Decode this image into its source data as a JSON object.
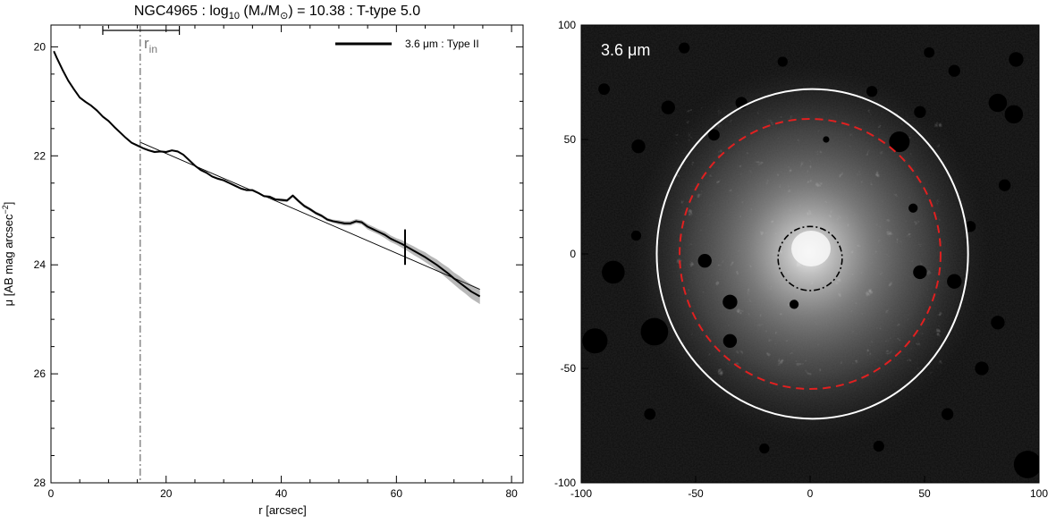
{
  "figure": {
    "title_prefix": "NGC4965 : log",
    "title_sub": "10",
    "title_mid": " (M",
    "title_star": "*",
    "title_slash": "/M",
    "title_sun": "⊙",
    "title_suffix": ") = 10.38 : T-type 5.0"
  },
  "chart_data": [
    {
      "type": "line",
      "xlabel": "r [arcsec]",
      "ylabel_prefix": "μ [AB mag arcsec",
      "ylabel_sup": "−2",
      "ylabel_suffix": "]",
      "xlim": [
        0,
        82
      ],
      "ylim": [
        28,
        19.6
      ],
      "y_inverted": true,
      "xticks": [
        0,
        20,
        40,
        60,
        80
      ],
      "yticks": [
        20,
        22,
        24,
        26,
        28
      ],
      "legend": {
        "label": "3.6 μm : Type II",
        "placement": "top-right"
      },
      "series": [
        {
          "name": "3.6 μm : Type II",
          "color": "#000000",
          "x": [
            0.5,
            1,
            2,
            3,
            4,
            5,
            6,
            7,
            8,
            9,
            10,
            11,
            12,
            13,
            14,
            15,
            16,
            17,
            18,
            19,
            20,
            21,
            22,
            23,
            24,
            25,
            26,
            27,
            28,
            29,
            30,
            31,
            32,
            33,
            34,
            35,
            36,
            37,
            38,
            39,
            40,
            41,
            42,
            43,
            44,
            45,
            46,
            47,
            48,
            49,
            50,
            51,
            52,
            53,
            54,
            55,
            56,
            57,
            58,
            59,
            60,
            61,
            62,
            63,
            64,
            65,
            66,
            67,
            68,
            69,
            70,
            71,
            72,
            73,
            74.5
          ],
          "y": [
            20.08,
            20.2,
            20.42,
            20.62,
            20.78,
            20.93,
            21.01,
            21.08,
            21.17,
            21.28,
            21.36,
            21.47,
            21.57,
            21.67,
            21.76,
            21.81,
            21.86,
            21.9,
            21.93,
            21.92,
            21.93,
            21.9,
            21.92,
            21.98,
            22.08,
            22.18,
            22.26,
            22.31,
            22.38,
            22.42,
            22.45,
            22.5,
            22.55,
            22.6,
            22.63,
            22.63,
            22.68,
            22.74,
            22.75,
            22.8,
            22.81,
            22.82,
            22.73,
            22.83,
            22.92,
            22.98,
            23.05,
            23.1,
            23.17,
            23.2,
            23.22,
            23.24,
            23.24,
            23.2,
            23.22,
            23.3,
            23.35,
            23.4,
            23.45,
            23.52,
            23.57,
            23.62,
            23.68,
            23.74,
            23.8,
            23.86,
            23.93,
            24.0,
            24.08,
            24.16,
            24.25,
            24.33,
            24.41,
            24.49,
            24.58
          ],
          "band_halfwidth": [
            0.02,
            0.02,
            0.02,
            0.02,
            0.02,
            0.02,
            0.02,
            0.02,
            0.02,
            0.02,
            0.02,
            0.02,
            0.02,
            0.02,
            0.02,
            0.02,
            0.02,
            0.02,
            0.02,
            0.02,
            0.02,
            0.02,
            0.02,
            0.02,
            0.02,
            0.02,
            0.02,
            0.02,
            0.02,
            0.02,
            0.02,
            0.02,
            0.02,
            0.02,
            0.02,
            0.02,
            0.02,
            0.02,
            0.02,
            0.02,
            0.03,
            0.03,
            0.03,
            0.03,
            0.03,
            0.03,
            0.03,
            0.03,
            0.03,
            0.03,
            0.04,
            0.04,
            0.04,
            0.04,
            0.04,
            0.05,
            0.05,
            0.05,
            0.06,
            0.06,
            0.06,
            0.07,
            0.07,
            0.08,
            0.08,
            0.09,
            0.09,
            0.1,
            0.1,
            0.11,
            0.11,
            0.12,
            0.12,
            0.13,
            0.14
          ]
        }
      ],
      "fit_line": {
        "x": [
          15.5,
          74.5
        ],
        "y": [
          21.75,
          24.45
        ]
      },
      "r_in": {
        "value": 15.5,
        "label_main": "r",
        "label_sub": "in",
        "err_range": [
          9,
          22.3
        ],
        "style": "dash-dot",
        "color": "#777777"
      },
      "break_marker": {
        "x": 61.5,
        "y_range": [
          23.35,
          24.0
        ]
      }
    },
    {
      "type": "image",
      "band_label": "3.6 μm",
      "xlim": [
        -100,
        100
      ],
      "ylim": [
        -100,
        100
      ],
      "xticks": [
        -100,
        -50,
        0,
        50,
        100
      ],
      "yticks": [
        -100,
        -50,
        0,
        50,
        100
      ],
      "inner_ellipse": {
        "cx": 0,
        "cy": -2,
        "rx": 14,
        "ry": 14,
        "color": "#000000",
        "style": "dash-dot"
      },
      "break_ellipse": {
        "cx": 0,
        "cy": 0,
        "rx": 57,
        "ry": 59,
        "color": "#e02020",
        "style": "dashed"
      },
      "outer_ellipse": {
        "cx": 1,
        "cy": 0,
        "rx": 68,
        "ry": 72,
        "color": "#ffffff",
        "style": "solid"
      },
      "masked_sources": [
        {
          "x": 39,
          "y": 49,
          "r": 4.5
        },
        {
          "x": -94,
          "y": -38,
          "r": 5.5
        },
        {
          "x": -68,
          "y": -34,
          "r": 6
        },
        {
          "x": -86,
          "y": -8,
          "r": 5
        },
        {
          "x": -46,
          "y": -3,
          "r": 3
        },
        {
          "x": -35,
          "y": -21,
          "r": 3.2
        },
        {
          "x": -35,
          "y": -38,
          "r": 3
        },
        {
          "x": -7,
          "y": -22,
          "r": 2
        },
        {
          "x": 48,
          "y": -8,
          "r": 3
        },
        {
          "x": 63,
          "y": -12,
          "r": 3.2
        },
        {
          "x": 82,
          "y": 66,
          "r": 4
        },
        {
          "x": 89,
          "y": 61,
          "r": 4
        },
        {
          "x": 63,
          "y": 80,
          "r": 2.6
        },
        {
          "x": 70,
          "y": 12,
          "r": 2.4
        },
        {
          "x": -30,
          "y": 66,
          "r": 2.6
        },
        {
          "x": 27,
          "y": 71,
          "r": 2.4
        },
        {
          "x": 48,
          "y": 62,
          "r": 2.6
        },
        {
          "x": 90,
          "y": 85,
          "r": 3.2
        },
        {
          "x": 95,
          "y": -92,
          "r": 6
        },
        {
          "x": -62,
          "y": 64,
          "r": 3
        },
        {
          "x": -75,
          "y": 47,
          "r": 3
        },
        {
          "x": -42,
          "y": 52,
          "r": 2.5
        },
        {
          "x": -12,
          "y": 84,
          "r": 2.2
        },
        {
          "x": 45,
          "y": 20,
          "r": 2
        },
        {
          "x": 75,
          "y": -50,
          "r": 3
        },
        {
          "x": 60,
          "y": -70,
          "r": 2.6
        },
        {
          "x": 82,
          "y": -30,
          "r": 3
        },
        {
          "x": -90,
          "y": 72,
          "r": 2.5
        },
        {
          "x": -70,
          "y": -70,
          "r": 2.5
        },
        {
          "x": -20,
          "y": -85,
          "r": 2.2
        },
        {
          "x": 30,
          "y": -84,
          "r": 2.4
        },
        {
          "x": 85,
          "y": 30,
          "r": 2.6
        },
        {
          "x": -76,
          "y": 8,
          "r": 2.2
        },
        {
          "x": 52,
          "y": 88,
          "r": 2.3
        },
        {
          "x": -55,
          "y": 90,
          "r": 2.4
        },
        {
          "x": 7,
          "y": 50,
          "r": 1.4
        }
      ]
    }
  ]
}
